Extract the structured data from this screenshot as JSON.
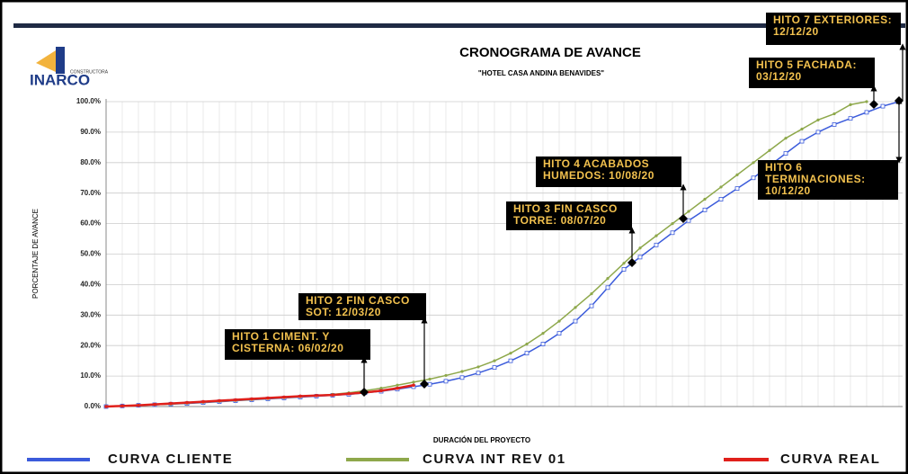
{
  "logo": {
    "name": "INARCO",
    "tagline": "CONSTRUCTORA"
  },
  "chart_data": {
    "type": "line",
    "title": "CRONOGRAMA DE AVANCE",
    "subtitle": "\"HOTEL CASA ANDINA BENAVIDES\"",
    "x_label": "DURACIÓN DEL PROYECTO",
    "y_label": "PORCENTAJE DE AVANCE",
    "categories": [
      null,
      null,
      null,
      null,
      null,
      null,
      null,
      null,
      null,
      null,
      null,
      null,
      null,
      null,
      null,
      null,
      null,
      null,
      null,
      null,
      null,
      null,
      null,
      null,
      null,
      null,
      null,
      null,
      null,
      null,
      null,
      null,
      null,
      null,
      null,
      null,
      null,
      null,
      null,
      null,
      null,
      null,
      null,
      null,
      null,
      null,
      null,
      null,
      null,
      null
    ],
    "ylim": [
      0,
      100
    ],
    "yticks": [
      {
        "value": 0,
        "label": "0.0%"
      },
      {
        "value": 10,
        "label": "10.0%"
      },
      {
        "value": 20,
        "label": "20.0%"
      },
      {
        "value": 30,
        "label": "30.0%"
      },
      {
        "value": 40,
        "label": "40.0%"
      },
      {
        "value": 50,
        "label": "50.0%"
      },
      {
        "value": 60,
        "label": "60.0%"
      },
      {
        "value": 70,
        "label": "70.0%"
      },
      {
        "value": 80,
        "label": "80.0%"
      },
      {
        "value": 90,
        "label": "90.0%"
      },
      {
        "value": 100,
        "label": "100.0%"
      }
    ],
    "grid": true,
    "series": [
      {
        "name": "CURVA CLIENTE",
        "color": "#3b5bdb",
        "values": [
          0,
          0.2,
          0.4,
          0.6,
          0.8,
          1.0,
          1.3,
          1.6,
          1.9,
          2.2,
          2.5,
          2.8,
          3.1,
          3.4,
          3.7,
          4.0,
          4.5,
          5.0,
          5.7,
          6.5,
          7.3,
          8.3,
          9.5,
          11,
          12.8,
          15,
          17.5,
          20.5,
          24,
          28,
          33,
          39,
          45,
          49,
          53,
          57,
          61,
          64.5,
          68,
          71.5,
          75,
          79,
          83,
          87,
          90,
          92.5,
          94.5,
          96.5,
          98.5,
          100
        ]
      },
      {
        "name": "CURVA INT REV 01",
        "color": "#8ea84b",
        "values": [
          0,
          0.2,
          0.4,
          0.6,
          0.8,
          1.1,
          1.4,
          1.7,
          2.0,
          2.3,
          2.6,
          2.9,
          3.2,
          3.6,
          4.0,
          4.5,
          5.2,
          6.0,
          7.0,
          8.0,
          9.0,
          10.2,
          11.5,
          13,
          15,
          17.5,
          20.5,
          24,
          28,
          32.5,
          37,
          42,
          47,
          52,
          56,
          60,
          64,
          68,
          72,
          76,
          80,
          84,
          88,
          91,
          94,
          96,
          99,
          100,
          null,
          null
        ]
      },
      {
        "name": "CURVA REAL",
        "color": "#e0201b",
        "values": [
          0,
          0.2,
          0.4,
          0.7,
          1.0,
          1.3,
          1.6,
          1.9,
          2.2,
          2.5,
          2.8,
          3.1,
          3.4,
          3.6,
          3.8,
          4.2,
          4.6,
          5.2,
          6.0,
          7.0,
          null,
          null,
          null,
          null,
          null,
          null,
          null,
          null,
          null,
          null,
          null,
          null,
          null,
          null,
          null,
          null,
          null,
          null,
          null,
          null,
          null,
          null,
          null,
          null,
          null,
          null,
          null,
          null,
          null,
          null
        ]
      }
    ],
    "annotations": [
      {
        "lines": [
          "HITO 1 CIMENT. Y",
          "CISTERNA: 06/02/20"
        ]
      },
      {
        "lines": [
          "HITO 2 FIN CASCO",
          "SOT: 12/03/20"
        ]
      },
      {
        "lines": [
          "HITO 3 FIN CASCO",
          "TORRE: 08/07/20"
        ]
      },
      {
        "lines": [
          "HITO 4 ACABADOS",
          "HUMEDOS: 10/08/20"
        ]
      },
      {
        "lines": [
          "HITO 5 FACHADA:",
          "03/12/20"
        ]
      },
      {
        "lines": [
          "HITO 6",
          "TERMINACIONES:",
          "10/12/20"
        ]
      },
      {
        "lines": [
          "HITO 7 EXTERIORES:",
          "12/12/20"
        ]
      }
    ]
  }
}
